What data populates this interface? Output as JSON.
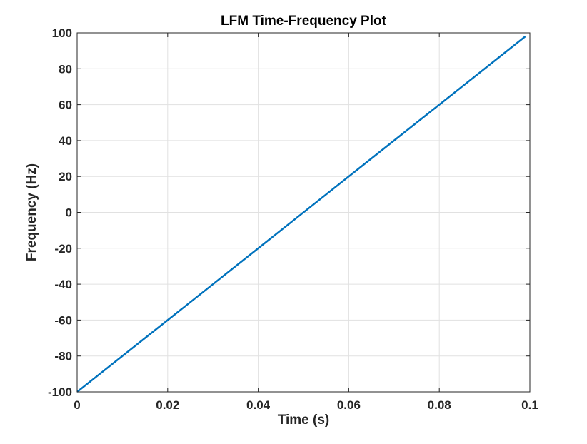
{
  "chart_data": {
    "type": "line",
    "title": "LFM Time-Frequency Plot",
    "xlabel": "Time (s)",
    "ylabel": "Frequency (Hz)",
    "xlim": [
      0,
      0.1
    ],
    "ylim": [
      -100,
      100
    ],
    "xticks": [
      0,
      0.02,
      0.04,
      0.06,
      0.08,
      0.1
    ],
    "xtick_labels": [
      "0",
      "0.02",
      "0.04",
      "0.06",
      "0.08",
      "0.1"
    ],
    "yticks": [
      -100,
      -80,
      -60,
      -40,
      -20,
      0,
      20,
      40,
      60,
      80,
      100
    ],
    "ytick_labels": [
      "-100",
      "-80",
      "-60",
      "-40",
      "-20",
      "0",
      "20",
      "40",
      "60",
      "80",
      "100"
    ],
    "grid": true,
    "series": [
      {
        "color": "#0072bd",
        "x": [
          0,
          0.099
        ],
        "y": [
          -100,
          98
        ]
      }
    ]
  }
}
